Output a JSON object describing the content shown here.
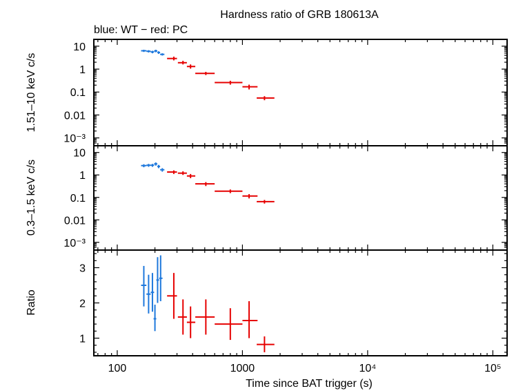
{
  "title": "Hardness ratio of GRB 180613A",
  "subtitle": "blue: WT − red: PC",
  "colors": {
    "wt": "#1e78dc",
    "pc": "#e60000",
    "axis": "#000000"
  },
  "chart_data": [
    {
      "type": "scatter",
      "ylabel": "1.51–10 keV c/s",
      "yscale": "log",
      "ylim": [
        0.0006,
        15
      ],
      "yticks": [
        {
          "value": 10,
          "label": "10"
        },
        {
          "value": 1,
          "label": "1"
        },
        {
          "value": 0.1,
          "label": "0.1"
        },
        {
          "value": 0.01,
          "label": "0.01"
        },
        {
          "value": 0.001,
          "label": "10⁻³"
        }
      ],
      "series": [
        {
          "name": "WT",
          "color": "#1e78dc",
          "points": [
            {
              "x": 163,
              "xlo": 155,
              "xhi": 171,
              "y": 6.3,
              "ylo": 5.6,
              "yhi": 7.0
            },
            {
              "x": 178,
              "xlo": 171,
              "xhi": 185,
              "y": 6.0,
              "ylo": 5.3,
              "yhi": 6.7
            },
            {
              "x": 191,
              "xlo": 185,
              "xhi": 197,
              "y": 5.6,
              "ylo": 4.9,
              "yhi": 6.3
            },
            {
              "x": 203,
              "xlo": 197,
              "xhi": 209,
              "y": 6.2,
              "ylo": 5.4,
              "yhi": 7.0
            },
            {
              "x": 214,
              "xlo": 209,
              "xhi": 220,
              "y": 5.3,
              "ylo": 4.6,
              "yhi": 6.0
            },
            {
              "x": 229,
              "xlo": 220,
              "xhi": 238,
              "y": 4.4,
              "ylo": 3.9,
              "yhi": 4.9
            }
          ]
        },
        {
          "name": "PC",
          "color": "#e60000",
          "points": [
            {
              "x": 283,
              "xlo": 250,
              "xhi": 300,
              "y": 2.9,
              "ylo": 2.4,
              "yhi": 3.5
            },
            {
              "x": 335,
              "xlo": 305,
              "xhi": 360,
              "y": 1.9,
              "ylo": 1.6,
              "yhi": 2.3
            },
            {
              "x": 385,
              "xlo": 360,
              "xhi": 420,
              "y": 1.3,
              "ylo": 1.05,
              "yhi": 1.6
            },
            {
              "x": 510,
              "xlo": 420,
              "xhi": 600,
              "y": 0.65,
              "ylo": 0.55,
              "yhi": 0.76
            },
            {
              "x": 800,
              "xlo": 600,
              "xhi": 1000,
              "y": 0.26,
              "ylo": 0.21,
              "yhi": 0.31
            },
            {
              "x": 1130,
              "xlo": 1000,
              "xhi": 1320,
              "y": 0.17,
              "ylo": 0.13,
              "yhi": 0.21
            },
            {
              "x": 1500,
              "xlo": 1300,
              "xhi": 1800,
              "y": 0.055,
              "ylo": 0.044,
              "yhi": 0.066
            }
          ]
        }
      ]
    },
    {
      "type": "scatter",
      "ylabel": "0.3–1.5 keV c/s",
      "yscale": "log",
      "ylim": [
        0.0006,
        15
      ],
      "yticks": [
        {
          "value": 10,
          "label": "10"
        },
        {
          "value": 1,
          "label": "1"
        },
        {
          "value": 0.1,
          "label": "0.1"
        },
        {
          "value": 0.01,
          "label": "0.01"
        },
        {
          "value": 0.001,
          "label": "10⁻³"
        }
      ],
      "series": [
        {
          "name": "WT",
          "color": "#1e78dc",
          "points": [
            {
              "x": 163,
              "xlo": 155,
              "xhi": 171,
              "y": 2.6,
              "ylo": 2.2,
              "yhi": 3.0
            },
            {
              "x": 178,
              "xlo": 171,
              "xhi": 185,
              "y": 2.7,
              "ylo": 2.3,
              "yhi": 3.1
            },
            {
              "x": 191,
              "xlo": 185,
              "xhi": 197,
              "y": 2.7,
              "ylo": 2.3,
              "yhi": 3.1
            },
            {
              "x": 203,
              "xlo": 197,
              "xhi": 209,
              "y": 3.1,
              "ylo": 2.6,
              "yhi": 3.6
            },
            {
              "x": 214,
              "xlo": 209,
              "xhi": 220,
              "y": 2.4,
              "ylo": 2.0,
              "yhi": 2.8
            },
            {
              "x": 229,
              "xlo": 220,
              "xhi": 238,
              "y": 1.7,
              "ylo": 1.4,
              "yhi": 2.0
            }
          ]
        },
        {
          "name": "PC",
          "color": "#e60000",
          "points": [
            {
              "x": 283,
              "xlo": 250,
              "xhi": 300,
              "y": 1.35,
              "ylo": 1.1,
              "yhi": 1.6
            },
            {
              "x": 335,
              "xlo": 305,
              "xhi": 360,
              "y": 1.2,
              "ylo": 1.0,
              "yhi": 1.45
            },
            {
              "x": 385,
              "xlo": 360,
              "xhi": 420,
              "y": 0.9,
              "ylo": 0.72,
              "yhi": 1.1
            },
            {
              "x": 510,
              "xlo": 420,
              "xhi": 600,
              "y": 0.4,
              "ylo": 0.32,
              "yhi": 0.48
            },
            {
              "x": 800,
              "xlo": 600,
              "xhi": 1000,
              "y": 0.19,
              "ylo": 0.155,
              "yhi": 0.225
            },
            {
              "x": 1130,
              "xlo": 1000,
              "xhi": 1320,
              "y": 0.115,
              "ylo": 0.09,
              "yhi": 0.14
            },
            {
              "x": 1500,
              "xlo": 1300,
              "xhi": 1800,
              "y": 0.065,
              "ylo": 0.053,
              "yhi": 0.077
            }
          ]
        }
      ]
    },
    {
      "type": "scatter",
      "ylabel": "Ratio",
      "yscale": "linear",
      "ylim": [
        0.5,
        3.5
      ],
      "yticks": [
        {
          "value": 1,
          "label": "1"
        },
        {
          "value": 2,
          "label": "2"
        },
        {
          "value": 3,
          "label": "3"
        }
      ],
      "xlabel": "Time since BAT trigger (s)",
      "xscale": "log",
      "xlim": [
        65,
        130000
      ],
      "xticks": [
        {
          "value": 100,
          "label": "100"
        },
        {
          "value": 1000,
          "label": "1000"
        },
        {
          "value": 10000,
          "label": "10⁴"
        },
        {
          "value": 100000,
          "label": "10⁵"
        }
      ],
      "series": [
        {
          "name": "WT",
          "color": "#1e78dc",
          "points": [
            {
              "x": 163,
              "xlo": 155,
              "xhi": 171,
              "y": 2.5,
              "ylo": 1.9,
              "yhi": 3.05
            },
            {
              "x": 178,
              "xlo": 171,
              "xhi": 185,
              "y": 2.25,
              "ylo": 1.7,
              "yhi": 2.8
            },
            {
              "x": 191,
              "xlo": 185,
              "xhi": 197,
              "y": 2.3,
              "ylo": 1.75,
              "yhi": 2.85
            },
            {
              "x": 200,
              "xlo": 195,
              "xhi": 205,
              "y": 1.55,
              "ylo": 1.2,
              "yhi": 1.95
            },
            {
              "x": 210,
              "xlo": 205,
              "xhi": 216,
              "y": 2.65,
              "ylo": 2.0,
              "yhi": 3.3
            },
            {
              "x": 222,
              "xlo": 216,
              "xhi": 230,
              "y": 2.7,
              "ylo": 2.05,
              "yhi": 3.35
            }
          ]
        },
        {
          "name": "PC",
          "color": "#e60000",
          "points": [
            {
              "x": 283,
              "xlo": 250,
              "xhi": 300,
              "y": 2.2,
              "ylo": 1.55,
              "yhi": 2.85
            },
            {
              "x": 335,
              "xlo": 305,
              "xhi": 360,
              "y": 1.6,
              "ylo": 1.1,
              "yhi": 2.1
            },
            {
              "x": 385,
              "xlo": 360,
              "xhi": 420,
              "y": 1.45,
              "ylo": 1.0,
              "yhi": 1.9
            },
            {
              "x": 510,
              "xlo": 420,
              "xhi": 600,
              "y": 1.6,
              "ylo": 1.1,
              "yhi": 2.1
            },
            {
              "x": 800,
              "xlo": 600,
              "xhi": 1000,
              "y": 1.4,
              "ylo": 0.95,
              "yhi": 1.85
            },
            {
              "x": 1130,
              "xlo": 1000,
              "xhi": 1320,
              "y": 1.5,
              "ylo": 1.0,
              "yhi": 2.05
            },
            {
              "x": 1500,
              "xlo": 1300,
              "xhi": 1800,
              "y": 0.82,
              "ylo": 0.6,
              "yhi": 1.05
            }
          ]
        }
      ]
    }
  ]
}
